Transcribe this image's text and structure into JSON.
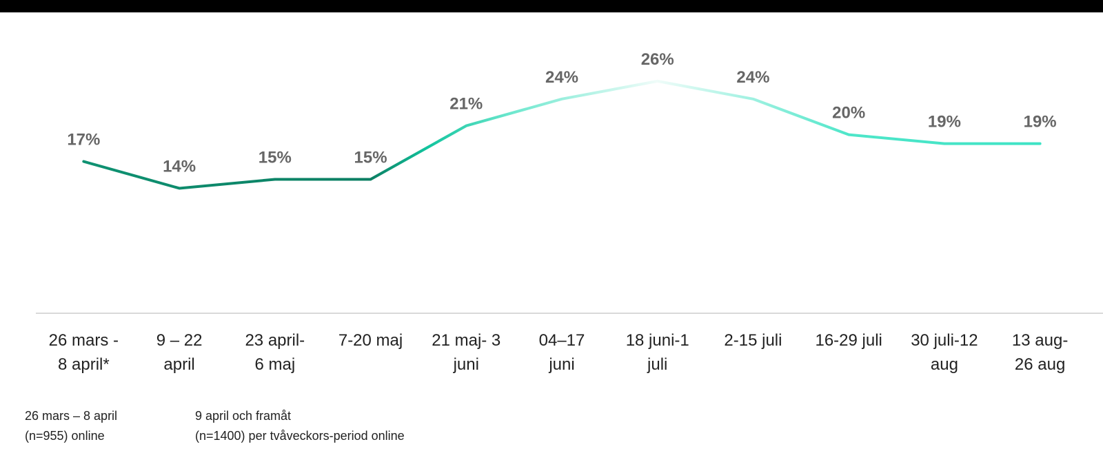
{
  "chart_data": {
    "type": "line",
    "categories": [
      [
        "26 mars -",
        "8 april*"
      ],
      [
        "9 – 22",
        "april"
      ],
      [
        "23 april-",
        "6 maj"
      ],
      [
        "7-20 maj"
      ],
      [
        "21 maj- 3",
        "juni"
      ],
      [
        "04–17",
        "juni"
      ],
      [
        "18 juni-1",
        "juli"
      ],
      [
        "2-15 juli"
      ],
      [
        "16-29 juli"
      ],
      [
        "30 juli-12",
        "aug"
      ],
      [
        "13 aug-",
        "26 aug"
      ]
    ],
    "values": [
      17,
      14,
      15,
      15,
      21,
      24,
      26,
      24,
      20,
      19,
      19
    ],
    "value_labels": [
      "17%",
      "14%",
      "15%",
      "15%",
      "21%",
      "24%",
      "26%",
      "24%",
      "20%",
      "19%",
      "19%"
    ],
    "ylim": [
      0,
      30
    ],
    "notes": [
      [
        "26 mars – 8 april",
        "(n=955) online"
      ],
      [
        "9 april och framåt",
        "(n=1400) per tvåveckors-period online"
      ]
    ]
  }
}
